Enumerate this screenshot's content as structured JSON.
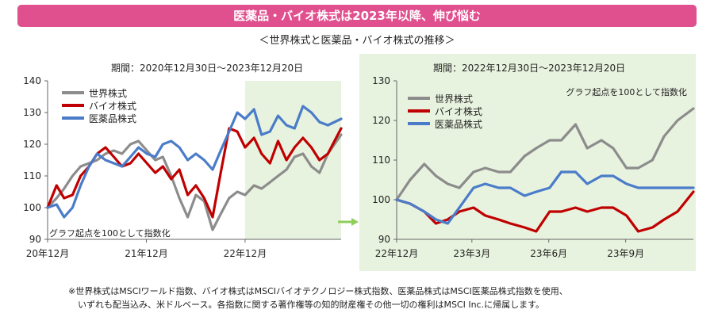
{
  "banner": "医薬品・バイオ株式は2023年以降、伸び悩む",
  "subtitle": "＜世界株式と医薬品・バイオ株式の推移＞",
  "colors": {
    "world": "#8c8c8c",
    "bio": "#c00000",
    "pharma": "#4a7cc9",
    "banner": "#e0508f",
    "highlight": "#e8f3df"
  },
  "footnote": {
    "line1": "※世界株式はMSCIワールド指数、バイオ株式はMSCIバイオテクノロジー株式指数、医薬品株式はMSCI医薬品株式指数を使用、",
    "line2": "いずれも配当込み、米ドルベース。各指数に関する著作権等の知的財産権その他一切の権利はMSCI Inc.に帰属します。"
  },
  "chart_data": [
    {
      "type": "line",
      "period": "期間：2020年12月30日～2023年12月20日",
      "note": "グラフ起点を100として指数化",
      "ylim": [
        90,
        140
      ],
      "yticks": [
        90,
        100,
        110,
        120,
        130,
        140
      ],
      "xlim": [
        "2020-12-30",
        "2023-12-20"
      ],
      "xticks": [
        {
          "label": "20年12月",
          "date": "2020-12-30"
        },
        {
          "label": "21年12月",
          "date": "2021-12-30"
        },
        {
          "label": "22年12月",
          "date": "2022-12-30"
        }
      ],
      "highlight_from": "2022-12-30",
      "x": [
        "2020-12-30",
        "2021-02-01",
        "2021-03-01",
        "2021-04-01",
        "2021-05-01",
        "2021-06-01",
        "2021-07-01",
        "2021-08-01",
        "2021-09-01",
        "2021-10-01",
        "2021-11-01",
        "2021-12-01",
        "2022-01-01",
        "2022-02-01",
        "2022-03-01",
        "2022-04-01",
        "2022-05-01",
        "2022-06-01",
        "2022-07-01",
        "2022-08-01",
        "2022-09-01",
        "2022-10-01",
        "2022-11-01",
        "2022-12-01",
        "2022-12-30",
        "2023-02-01",
        "2023-03-01",
        "2023-04-01",
        "2023-05-01",
        "2023-06-01",
        "2023-07-01",
        "2023-08-01",
        "2023-09-01",
        "2023-10-01",
        "2023-11-01",
        "2023-12-20"
      ],
      "series": [
        {
          "name": "世界株式",
          "key": "world",
          "values": [
            100,
            103,
            106,
            110,
            113,
            114,
            115,
            117,
            118,
            117,
            120,
            121,
            118,
            115,
            116,
            110,
            103,
            97,
            104,
            102,
            93,
            98,
            103,
            105,
            104,
            107,
            106,
            108,
            110,
            112,
            116,
            117,
            113,
            111,
            117,
            123
          ]
        },
        {
          "name": "バイオ株式",
          "key": "bio",
          "values": [
            100,
            107,
            103,
            104,
            110,
            113,
            117,
            119,
            116,
            113,
            114,
            117,
            114,
            111,
            113,
            109,
            112,
            104,
            107,
            103,
            97,
            111,
            125,
            124,
            119,
            122,
            117,
            114,
            121,
            115,
            119,
            122,
            119,
            115,
            117,
            125
          ]
        },
        {
          "name": "医薬品株式",
          "key": "pharma",
          "values": [
            100,
            101,
            97,
            100,
            107,
            113,
            117,
            115,
            114,
            113,
            116,
            119,
            117,
            116,
            120,
            121,
            119,
            115,
            117,
            115,
            112,
            118,
            124,
            130,
            128,
            131,
            123,
            124,
            129,
            126,
            125,
            132,
            130,
            127,
            126,
            128
          ]
        }
      ]
    },
    {
      "type": "line",
      "period": "期間：2022年12月30日～2023年12月20日",
      "note": "グラフ起点を100として指数化",
      "ylim": [
        90,
        130
      ],
      "yticks": [
        90,
        100,
        110,
        120,
        130
      ],
      "xlim": [
        "2022-12-30",
        "2023-12-20"
      ],
      "xticks": [
        {
          "label": "22年12月",
          "date": "2022-12-30"
        },
        {
          "label": "23年3月",
          "date": "2023-03-30"
        },
        {
          "label": "23年6月",
          "date": "2023-06-30"
        },
        {
          "label": "23年9月",
          "date": "2023-09-30"
        }
      ],
      "x": [
        "2022-12-30",
        "2023-01-15",
        "2023-02-01",
        "2023-02-15",
        "2023-03-01",
        "2023-03-15",
        "2023-04-01",
        "2023-04-15",
        "2023-05-01",
        "2023-05-15",
        "2023-06-01",
        "2023-06-15",
        "2023-07-01",
        "2023-07-15",
        "2023-08-01",
        "2023-08-15",
        "2023-09-01",
        "2023-09-15",
        "2023-10-01",
        "2023-10-15",
        "2023-11-01",
        "2023-11-15",
        "2023-12-01",
        "2023-12-20"
      ],
      "series": [
        {
          "name": "世界株式",
          "key": "world",
          "values": [
            100,
            105,
            109,
            106,
            104,
            103,
            107,
            108,
            107,
            107,
            111,
            113,
            115,
            115,
            119,
            113,
            115,
            113,
            108,
            108,
            110,
            116,
            120,
            123
          ]
        },
        {
          "name": "バイオ株式",
          "key": "bio",
          "values": [
            100,
            99,
            97,
            94,
            95,
            97,
            98,
            96,
            95,
            94,
            93,
            92,
            97,
            97,
            98,
            97,
            98,
            98,
            96,
            92,
            93,
            95,
            97,
            102
          ]
        },
        {
          "name": "医薬品株式",
          "key": "pharma",
          "values": [
            100,
            99,
            97,
            95,
            94,
            98,
            103,
            104,
            103,
            103,
            101,
            102,
            103,
            107,
            107,
            104,
            106,
            106,
            104,
            103,
            103,
            103,
            103,
            103
          ]
        }
      ]
    }
  ]
}
